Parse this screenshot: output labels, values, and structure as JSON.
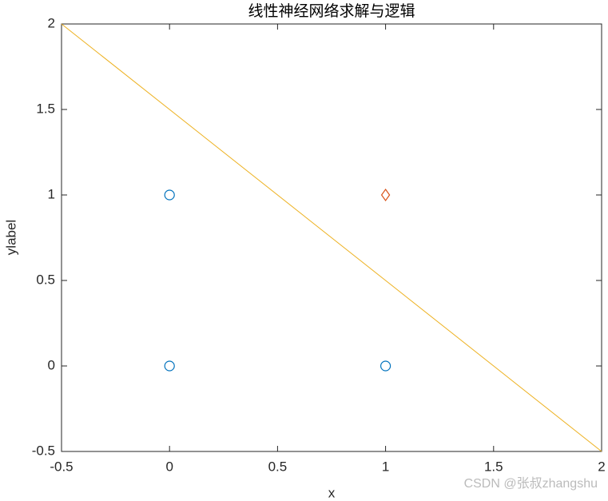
{
  "chart_data": {
    "type": "scatter",
    "title": "线性神经网络求解与逻辑",
    "x_label": "x",
    "y_label": "ylabel",
    "watermark": "CSDN @张叔zhangshu",
    "xlim": [
      -0.5,
      2
    ],
    "ylim": [
      -0.5,
      2
    ],
    "xticks": [
      -0.5,
      0,
      0.5,
      1,
      1.5,
      2
    ],
    "yticks": [
      -0.5,
      0,
      0.5,
      1,
      1.5,
      2
    ],
    "grid": false,
    "series": [
      {
        "type": "scatter",
        "marker": "circle",
        "color": "#0072bd",
        "x": [
          0,
          0,
          1
        ],
        "values": [
          0,
          1,
          0
        ]
      },
      {
        "type": "scatter",
        "marker": "diamond",
        "color": "#d95319",
        "x": [
          1
        ],
        "values": [
          1
        ]
      },
      {
        "type": "line",
        "color": "#edb120",
        "x": [
          -0.5,
          2
        ],
        "values": [
          2,
          -0.5
        ]
      }
    ]
  }
}
